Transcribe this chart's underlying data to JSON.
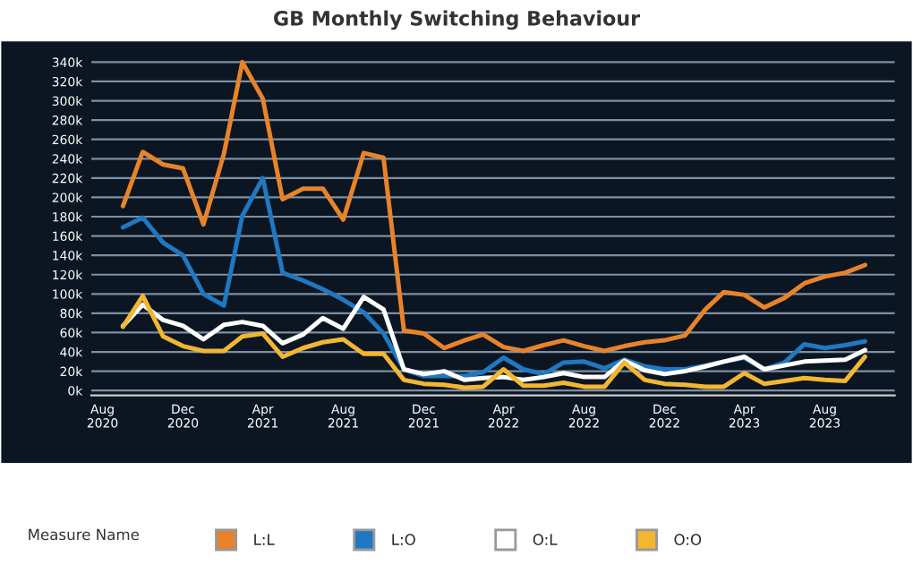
{
  "chart_data": {
    "type": "line",
    "title": "GB Monthly Switching Behaviour",
    "legend_title": "Measure Name",
    "x": [
      "2020-09",
      "2020-10",
      "2020-11",
      "2020-12",
      "2021-01",
      "2021-02",
      "2021-03",
      "2021-04",
      "2021-05",
      "2021-06",
      "2021-07",
      "2021-08",
      "2021-09",
      "2021-10",
      "2021-11",
      "2021-12",
      "2022-01",
      "2022-02",
      "2022-03",
      "2022-04",
      "2022-05",
      "2022-06",
      "2022-07",
      "2022-08",
      "2022-09",
      "2022-10",
      "2022-11",
      "2022-12",
      "2023-01",
      "2023-02",
      "2023-03",
      "2023-04",
      "2023-05",
      "2023-06",
      "2023-07",
      "2023-08",
      "2023-09",
      "2023-10"
    ],
    "series": [
      {
        "name": "L:L",
        "color": "#e8832a",
        "values": [
          191,
          247,
          234,
          230,
          172,
          245,
          340,
          302,
          198,
          209,
          209,
          177,
          246,
          241,
          62,
          59,
          44,
          52,
          58,
          45,
          41,
          47,
          52,
          46,
          41,
          46,
          50,
          52,
          57,
          84,
          102,
          99,
          86,
          96,
          111,
          118,
          122,
          130
        ]
      },
      {
        "name": "L:O",
        "color": "#1f78c1",
        "values": [
          169,
          179,
          153,
          140,
          100,
          88,
          181,
          220,
          122,
          114,
          105,
          94,
          81,
          59,
          22,
          15,
          15,
          15,
          19,
          34,
          22,
          17,
          29,
          30,
          23,
          32,
          25,
          22,
          22,
          26,
          30,
          34,
          22,
          29,
          48,
          44,
          47,
          51
        ]
      },
      {
        "name": "O:L",
        "color": "#ffffff",
        "values": [
          67,
          89,
          73,
          67,
          53,
          68,
          71,
          67,
          49,
          58,
          75,
          64,
          97,
          84,
          22,
          17,
          20,
          11,
          13,
          14,
          11,
          14,
          18,
          14,
          14,
          31,
          21,
          17,
          20,
          25,
          30,
          35,
          22,
          26,
          30,
          31,
          32,
          42
        ]
      },
      {
        "name": "O:O",
        "color": "#f2b631",
        "values": [
          66,
          98,
          56,
          46,
          41,
          41,
          56,
          59,
          35,
          44,
          50,
          53,
          38,
          38,
          11,
          7,
          6,
          3,
          4,
          22,
          5,
          5,
          8,
          4,
          4,
          29,
          11,
          7,
          6,
          4,
          4,
          18,
          7,
          10,
          13,
          11,
          10,
          35
        ]
      }
    ],
    "xlim": [
      "2020-07-15",
      "2023-11-15"
    ],
    "xticks": [
      {
        "value": "2020-08",
        "label": "Aug\n2020"
      },
      {
        "value": "2020-12",
        "label": "Dec\n2020"
      },
      {
        "value": "2021-04",
        "label": "Apr\n2021"
      },
      {
        "value": "2021-08",
        "label": "Aug\n2021"
      },
      {
        "value": "2021-12",
        "label": "Dec\n2021"
      },
      {
        "value": "2022-04",
        "label": "Apr\n2022"
      },
      {
        "value": "2022-08",
        "label": "Aug\n2022"
      },
      {
        "value": "2022-12",
        "label": "Dec\n2022"
      },
      {
        "value": "2023-04",
        "label": "Apr\n2023"
      },
      {
        "value": "2023-08",
        "label": "Aug\n2023"
      }
    ],
    "ylim": [
      -5,
      345
    ],
    "yticks": [
      {
        "value": 0,
        "label": "0k"
      },
      {
        "value": 20,
        "label": "20k"
      },
      {
        "value": 40,
        "label": "40k"
      },
      {
        "value": 60,
        "label": "60k"
      },
      {
        "value": 80,
        "label": "80k"
      },
      {
        "value": 100,
        "label": "100k"
      },
      {
        "value": 120,
        "label": "120k"
      },
      {
        "value": 140,
        "label": "140k"
      },
      {
        "value": 160,
        "label": "160k"
      },
      {
        "value": 180,
        "label": "180k"
      },
      {
        "value": 200,
        "label": "200k"
      },
      {
        "value": 220,
        "label": "220k"
      },
      {
        "value": 240,
        "label": "240k"
      },
      {
        "value": 260,
        "label": "260k"
      },
      {
        "value": 280,
        "label": "280k"
      },
      {
        "value": 300,
        "label": "300k"
      },
      {
        "value": 320,
        "label": "320k"
      },
      {
        "value": 340,
        "label": "340k"
      }
    ],
    "grid": "y",
    "legend": "bottom",
    "marker": "none",
    "line_style": "solid"
  }
}
